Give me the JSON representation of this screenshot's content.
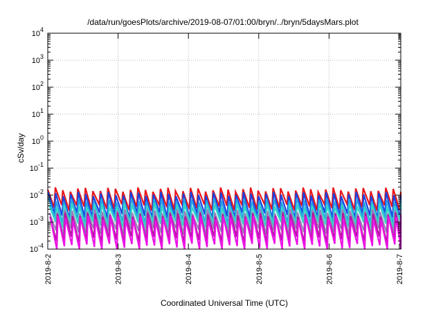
{
  "chart_data": {
    "type": "line",
    "title": "/data/run/goesPlots/archive/2019-08-07/01:00/bryn/../bryn/5daysMars.plot",
    "xlabel": "Coordinated Universal Time (UTC)",
    "ylabel": "cSv/day",
    "y_scale": "log",
    "ylim": [
      0.0001,
      10000
    ],
    "y_ticks": [
      {
        "value": 0.0001,
        "base": "10",
        "exp": "-4"
      },
      {
        "value": 0.001,
        "base": "10",
        "exp": "-3"
      },
      {
        "value": 0.01,
        "base": "10",
        "exp": "-2"
      },
      {
        "value": 0.1,
        "base": "10",
        "exp": "-1"
      },
      {
        "value": 1,
        "base": "10",
        "exp": "0"
      },
      {
        "value": 10,
        "base": "10",
        "exp": "1"
      },
      {
        "value": 100,
        "base": "10",
        "exp": "2"
      },
      {
        "value": 1000,
        "base": "10",
        "exp": "3"
      },
      {
        "value": 10000,
        "base": "10",
        "exp": "4"
      }
    ],
    "x_ticks": [
      "2019-8-2",
      "2019-8-3",
      "2019-8-4",
      "2019-8-5",
      "2019-8-6",
      "2019-8-7"
    ],
    "xlim": [
      0,
      5.02
    ],
    "grid": true,
    "legend": "none",
    "cycles": 47,
    "series": [
      {
        "color": "#e8171b",
        "peak": 0.016,
        "trough": 0.0035,
        "phase": 0.0
      },
      {
        "color": "#1a44e0",
        "peak": 0.011,
        "trough": 0.0017,
        "phase": 0.06
      },
      {
        "color": "#2a9fe6",
        "peak": 0.0065,
        "trough": 0.0011,
        "phase": 0.12
      },
      {
        "color": "#33d6c7",
        "peak": 0.0042,
        "trough": 0.0008,
        "phase": 0.18
      },
      {
        "color": "#9a7fbf",
        "peak": 0.0025,
        "trough": 0.00045,
        "phase": 0.24
      },
      {
        "color": "#b0179e",
        "peak": 0.0019,
        "trough": 0.00022,
        "phase": 0.3
      },
      {
        "color": "#ec14e6",
        "peak": 0.0014,
        "trough": 0.00012,
        "phase": 0.36
      }
    ]
  }
}
